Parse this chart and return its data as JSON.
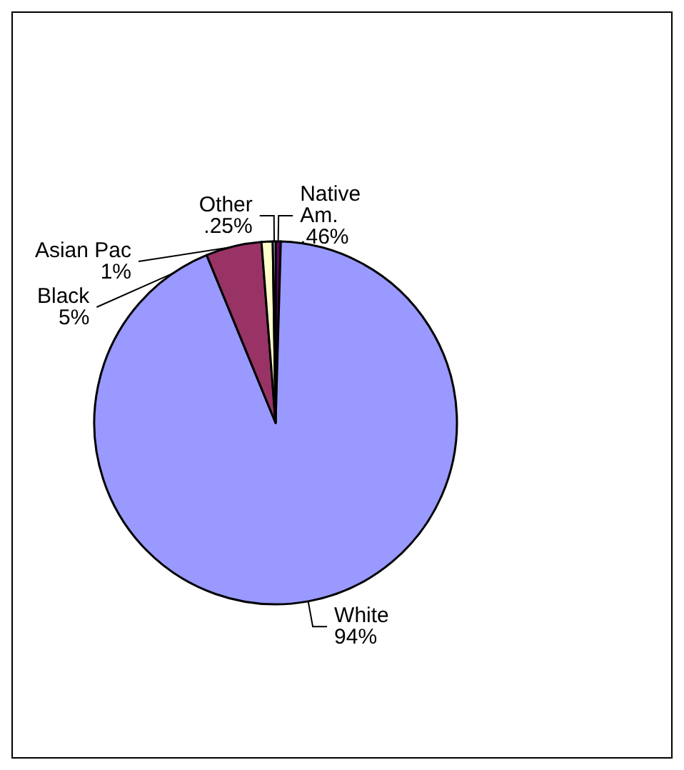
{
  "chart_data": {
    "type": "pie",
    "categories": [
      "Native\nAm.",
      "White",
      "Black",
      "Asian Pac",
      "Other"
    ],
    "values": [
      0.46,
      94,
      5,
      1,
      0.25
    ],
    "colors": [
      "#660066",
      "#9999ff",
      "#993366",
      "#ffffcc",
      "#ccffff"
    ],
    "value_labels": [
      ".46%",
      "94%",
      "5%",
      "1%",
      ".25%"
    ],
    "legend": false
  }
}
